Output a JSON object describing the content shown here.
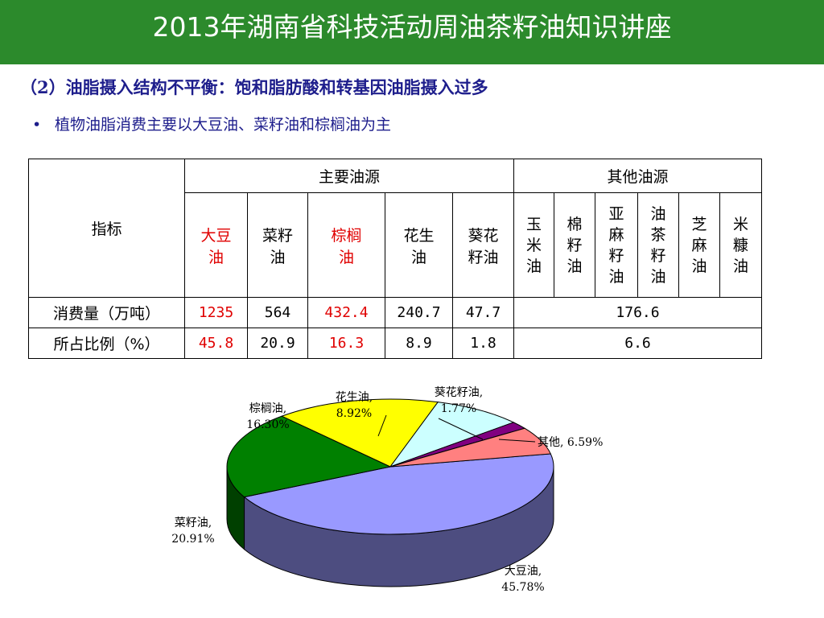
{
  "slide": {
    "title": "2013年湖南省科技活动周油茶籽油知识讲座",
    "subtitle": "（2）油脂摄入结构不平衡：饱和脂肪酸和转基因油脂摄入过多",
    "bullet": "植物油脂消费主要以大豆油、菜籽油和棕榈油为主",
    "title_bg": "#2c8a2c",
    "text_color": "#1e1e8c"
  },
  "table": {
    "row_header": "指标",
    "group_main": "主要油源",
    "group_other": "其他油源",
    "main_oils": [
      {
        "lines": [
          "大豆",
          "油"
        ],
        "highlight": true
      },
      {
        "lines": [
          "菜籽",
          "油"
        ],
        "highlight": false
      },
      {
        "lines": [
          "棕榈",
          "油"
        ],
        "highlight": true
      },
      {
        "lines": [
          "花生",
          "油"
        ],
        "highlight": false
      },
      {
        "lines": [
          "葵花",
          "籽油"
        ],
        "highlight": false
      }
    ],
    "other_oils": [
      {
        "lines": [
          "玉",
          "米",
          "油"
        ]
      },
      {
        "lines": [
          "棉",
          "籽",
          "油"
        ]
      },
      {
        "lines": [
          "亚",
          "麻",
          "籽",
          "油"
        ]
      },
      {
        "lines": [
          "油",
          "茶",
          "籽",
          "油"
        ]
      },
      {
        "lines": [
          "芝",
          "麻",
          "油"
        ]
      },
      {
        "lines": [
          "米",
          "糠",
          "油"
        ]
      }
    ],
    "rows": [
      {
        "label": "消费量（万吨）",
        "values": [
          "1235",
          "564",
          "432.4",
          "240.7",
          "47.7"
        ],
        "other": "176.6"
      },
      {
        "label": "所占比例（%）",
        "values": [
          "45.8",
          "20.9",
          "16.3",
          "8.9",
          "1.8"
        ],
        "other": "6.6"
      }
    ]
  },
  "chart_data": {
    "type": "pie",
    "slices": [
      {
        "label": "大豆油",
        "percent": "45.78%",
        "value": 45.78,
        "color": "#9999ff"
      },
      {
        "label": "菜籽油",
        "percent": "20.91%",
        "value": 20.91,
        "color": "#008000"
      },
      {
        "label": "棕榈油",
        "percent": "16.30%",
        "value": 16.3,
        "color": "#ffff00"
      },
      {
        "label": "花生油",
        "percent": "8.92%",
        "value": 8.92,
        "color": "#ccffff"
      },
      {
        "label": "葵花籽油",
        "percent": "1.77%",
        "value": 1.77,
        "color": "#800080"
      },
      {
        "label": "其他",
        "percent": "6.59%",
        "value": 6.59,
        "color": "#ff8080"
      }
    ]
  }
}
